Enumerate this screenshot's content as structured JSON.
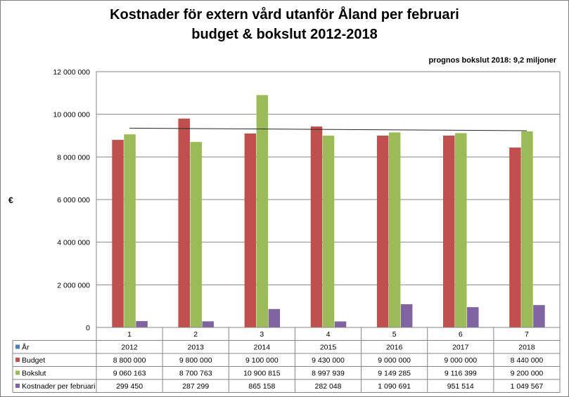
{
  "chart_data": {
    "type": "bar",
    "title": "Kostnader för extern vård utanför Åland per februari",
    "subtitle": "budget & bokslut  2012-2018",
    "note": "prognos bokslut 2018: 9,2 miljoner",
    "ylabel": "€",
    "ylim": [
      0,
      12000000
    ],
    "yticks": [
      "0",
      "2 000 000",
      "4 000 000",
      "6 000 000",
      "8 000 000",
      "10 000 000",
      "12 000 000"
    ],
    "ytick_values": [
      0,
      2000000,
      4000000,
      6000000,
      8000000,
      10000000,
      12000000
    ],
    "categories": [
      "1",
      "2",
      "3",
      "4",
      "5",
      "6",
      "7"
    ],
    "trendline": {
      "start": 9350000,
      "end": 9230000
    },
    "table_rows": [
      {
        "name": "År",
        "color": "#4f81bd",
        "cells": [
          "2012",
          "2013",
          "2014",
          "2015",
          "2016",
          "2017",
          "2018"
        ]
      },
      {
        "name": "Budget",
        "color": "#c0504d",
        "cells": [
          "8 800 000",
          "9 800 000",
          "9 100 000",
          "9 430 000",
          "9 000 000",
          "9 000 000",
          "8 440 000"
        ]
      },
      {
        "name": "Bokslut",
        "color": "#9bbb59",
        "cells": [
          "9 060 163",
          "8 700 763",
          "10 900 815",
          "8 997 939",
          "9 149 285",
          "9 116 399",
          "9 200 000"
        ]
      },
      {
        "name": "Kostnader per februari",
        "color": "#8064a2",
        "cells": [
          "299 450",
          "287 299",
          "865 158",
          "282 048",
          "1 090 691",
          "951 514",
          "1 049 567"
        ]
      }
    ],
    "series": [
      {
        "name": "År",
        "color": "#4f81bd",
        "values": [
          2012,
          2013,
          2014,
          2015,
          2016,
          2017,
          2018
        ]
      },
      {
        "name": "Budget",
        "color": "#c0504d",
        "values": [
          8800000,
          9800000,
          9100000,
          9430000,
          9000000,
          9000000,
          8440000
        ]
      },
      {
        "name": "Bokslut",
        "color": "#9bbb59",
        "values": [
          9060163,
          8700763,
          10900815,
          8997939,
          9149285,
          9116399,
          9200000
        ]
      },
      {
        "name": "Kostnader per februari",
        "color": "#8064a2",
        "values": [
          299450,
          287299,
          865158,
          282048,
          1090691,
          951514,
          1049567
        ]
      }
    ],
    "grid": true,
    "legend": "data-table"
  }
}
